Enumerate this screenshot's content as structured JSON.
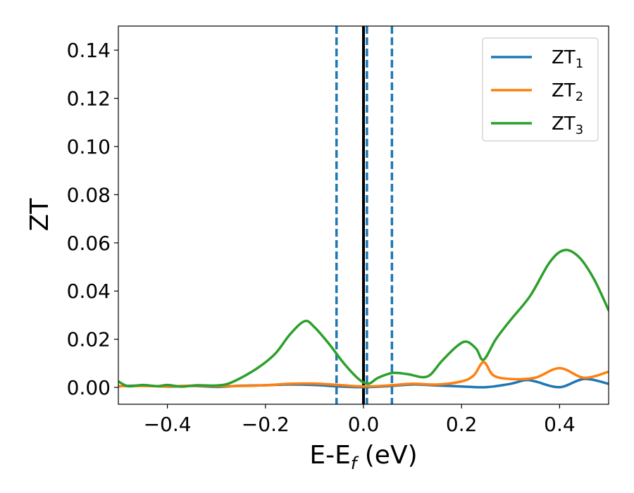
{
  "chart_data": {
    "type": "line",
    "xlabel": {
      "main": "E-E",
      "sub": "f",
      "tail": " (eV)"
    },
    "ylabel": "ZT",
    "xlim": [
      -0.5,
      0.5
    ],
    "ylim": [
      -0.007,
      0.15
    ],
    "xticks": [
      {
        "value": -0.4,
        "label": "−0.4"
      },
      {
        "value": -0.2,
        "label": "−0.2"
      },
      {
        "value": 0.0,
        "label": "0.0"
      },
      {
        "value": 0.2,
        "label": "0.2"
      },
      {
        "value": 0.4,
        "label": "0.4"
      }
    ],
    "yticks": [
      {
        "value": 0.0,
        "label": "0.00"
      },
      {
        "value": 0.02,
        "label": "0.02"
      },
      {
        "value": 0.04,
        "label": "0.04"
      },
      {
        "value": 0.06,
        "label": "0.06"
      },
      {
        "value": 0.08,
        "label": "0.08"
      },
      {
        "value": 0.1,
        "label": "0.10"
      },
      {
        "value": 0.12,
        "label": "0.12"
      },
      {
        "value": 0.14,
        "label": "0.14"
      }
    ],
    "legend_position": "top-right",
    "grid": false,
    "vlines": [
      {
        "x": -0.055,
        "style": "dashed",
        "color": "#1f77b4"
      },
      {
        "x": 0.0,
        "style": "solid",
        "color": "#000000"
      },
      {
        "x": 0.007,
        "style": "dashed",
        "color": "#1f77b4"
      },
      {
        "x": 0.058,
        "style": "dashed",
        "color": "#1f77b4"
      }
    ],
    "series": [
      {
        "name": "ZT",
        "name_sub": "1",
        "color": "#1f77b4",
        "x": [
          -0.5,
          -0.45,
          -0.4,
          -0.35,
          -0.3,
          -0.25,
          -0.2,
          -0.15,
          -0.1,
          -0.05,
          0.0,
          0.05,
          0.1,
          0.15,
          0.2,
          0.25,
          0.3,
          0.33,
          0.35,
          0.4,
          0.45,
          0.5
        ],
        "y": [
          0.0005,
          0.0008,
          0.0003,
          0.0006,
          0.0002,
          0.0007,
          0.0009,
          0.0012,
          0.001,
          0.0004,
          0.0001,
          0.0005,
          0.0012,
          0.0008,
          0.0004,
          0.0001,
          0.0015,
          0.003,
          0.0025,
          0.0001,
          0.0035,
          0.0015
        ]
      },
      {
        "name": "ZT",
        "name_sub": "2",
        "color": "#ff7f0e",
        "x": [
          -0.5,
          -0.45,
          -0.4,
          -0.35,
          -0.3,
          -0.25,
          -0.2,
          -0.15,
          -0.1,
          -0.05,
          0.0,
          0.05,
          0.1,
          0.15,
          0.2,
          0.225,
          0.245,
          0.265,
          0.3,
          0.35,
          0.4,
          0.45,
          0.5
        ],
        "y": [
          0.0005,
          0.0006,
          0.0004,
          0.0007,
          0.0005,
          0.0006,
          0.0009,
          0.0015,
          0.0016,
          0.001,
          0.0004,
          0.0008,
          0.0015,
          0.0012,
          0.0025,
          0.005,
          0.0105,
          0.005,
          0.0035,
          0.004,
          0.008,
          0.004,
          0.0065
        ]
      },
      {
        "name": "ZT",
        "name_sub": "3",
        "color": "#2ca02c",
        "x": [
          -0.5,
          -0.48,
          -0.45,
          -0.42,
          -0.4,
          -0.37,
          -0.34,
          -0.3,
          -0.27,
          -0.22,
          -0.18,
          -0.15,
          -0.12,
          -0.1,
          -0.07,
          -0.04,
          -0.01,
          0.01,
          0.03,
          0.06,
          0.09,
          0.13,
          0.16,
          0.19,
          0.21,
          0.23,
          0.245,
          0.27,
          0.3,
          0.34,
          0.38,
          0.41,
          0.44,
          0.47,
          0.5
        ],
        "y": [
          0.0025,
          0.0005,
          0.001,
          0.0005,
          0.001,
          0.0003,
          0.0009,
          0.0008,
          0.002,
          0.0075,
          0.014,
          0.022,
          0.0275,
          0.025,
          0.018,
          0.01,
          0.0035,
          0.0015,
          0.004,
          0.006,
          0.0055,
          0.0045,
          0.011,
          0.017,
          0.019,
          0.016,
          0.0115,
          0.02,
          0.028,
          0.038,
          0.052,
          0.057,
          0.054,
          0.045,
          0.032
        ]
      }
    ]
  }
}
